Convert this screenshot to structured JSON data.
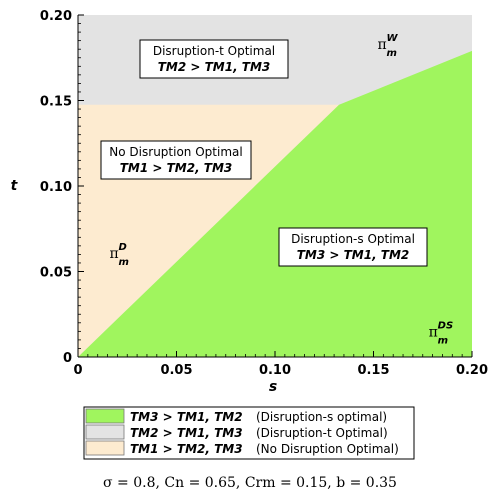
{
  "chart_data": {
    "type": "area",
    "xlabel": "s",
    "ylabel": "t",
    "xlim": [
      0,
      0.2
    ],
    "ylim": [
      0,
      0.2
    ],
    "x_ticks": [
      "0",
      "0.05",
      "0.10",
      "0.15",
      "0.20"
    ],
    "y_ticks": [
      "0",
      "0.05",
      "0.10",
      "0.15",
      "0.20"
    ],
    "regions": [
      {
        "key": "dt",
        "title": "Disruption-t Optimal",
        "relation": "TM2 > TM1, TM3",
        "color": "#e3e3e3"
      },
      {
        "key": "nd",
        "title": "No Disruption Optimal",
        "relation": "TM1 > TM2, TM3",
        "color": "#fdebd0"
      },
      {
        "key": "ds",
        "title": "Disruption-s Optimal",
        "relation": "TM3 > TM1, TM2",
        "color": "#a0f55e"
      }
    ],
    "boundaries": {
      "lower": [
        [
          0,
          0
        ],
        [
          0.1325,
          0.1475
        ]
      ],
      "upper": [
        [
          0.1325,
          0.1475
        ],
        [
          0.2,
          0.179
        ]
      ]
    },
    "point_labels": [
      {
        "symbol": "π",
        "sub": "m",
        "sup": "W",
        "x": 0.152,
        "y": 0.18
      },
      {
        "symbol": "π",
        "sub": "m",
        "sup": "D",
        "x": 0.016,
        "y": 0.058
      },
      {
        "symbol": "π",
        "sub": "m",
        "sup": "DS",
        "x": 0.178,
        "y": 0.012
      }
    ],
    "legend": [
      {
        "relation": "TM3 > TM1, TM2",
        "desc": "(Disruption-s optimal)",
        "color": "#a0f55e"
      },
      {
        "relation": "TM2 > TM1, TM3",
        "desc": "(Disruption-t Optimal)",
        "color": "#e3e3e3"
      },
      {
        "relation": "TM1 > TM2, TM3",
        "desc": "(No Disruption Optimal)",
        "color": "#fdebd0"
      }
    ],
    "caption": "σ = 0.8, Cn = 0.65, Crm = 0.15, b = 0.35"
  }
}
